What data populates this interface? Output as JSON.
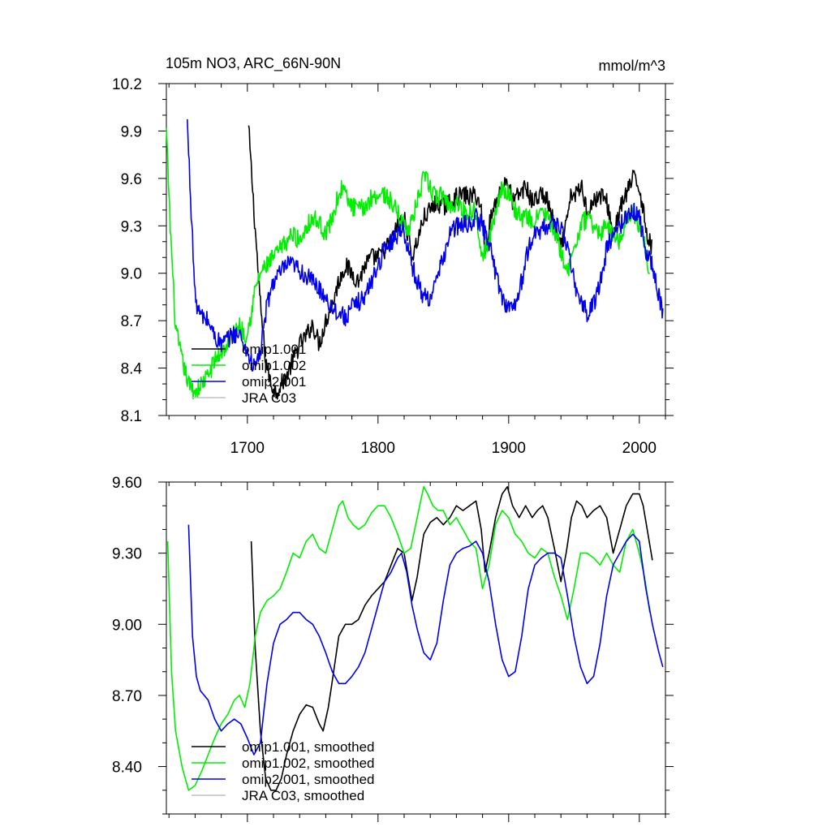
{
  "chart_data": [
    {
      "type": "line",
      "title": "105m NO3, ARC_66N-90N",
      "units": "mmol/m^3",
      "xlim": [
        1638,
        2020
      ],
      "ylim": [
        8.1,
        10.2
      ],
      "x_ticks": [
        1700,
        1800,
        1900,
        2000
      ],
      "x_tick_labels": [
        "1700",
        "1800",
        "1900",
        "2000"
      ],
      "y_ticks": [
        8.1,
        8.4,
        8.7,
        9.0,
        9.3,
        9.6,
        9.9,
        10.2
      ],
      "y_tick_labels": [
        "8.1",
        "8.4",
        "8.7",
        "9.0",
        "9.3",
        "9.6",
        "9.9",
        "10.2"
      ],
      "noise": 0.06,
      "legend": [
        "omip1.001",
        "omip1.002",
        "omip2.001",
        "JRA C03"
      ],
      "series": [
        {
          "name": "omip1.001",
          "color": "#000000",
          "x": [
            1701,
            1705,
            1710,
            1714,
            1718,
            1722,
            1726,
            1730,
            1735,
            1740,
            1745,
            1750,
            1755,
            1760,
            1765,
            1770,
            1775,
            1780,
            1785,
            1790,
            1795,
            1800,
            1805,
            1810,
            1815,
            1820,
            1823,
            1826,
            1830,
            1835,
            1840,
            1845,
            1850,
            1855,
            1860,
            1865,
            1870,
            1875,
            1879,
            1882,
            1885,
            1890,
            1895,
            1899,
            1903,
            1908,
            1913,
            1918,
            1922,
            1926,
            1930,
            1935,
            1940,
            1944,
            1948,
            1952,
            1956,
            1960,
            1965,
            1970,
            1975,
            1980,
            1985,
            1990,
            1995,
            2000,
            2003,
            2006,
            2010
          ],
          "y": [
            9.92,
            9.4,
            8.8,
            8.45,
            8.3,
            8.25,
            8.3,
            8.35,
            8.45,
            8.55,
            8.6,
            8.68,
            8.55,
            8.7,
            8.8,
            8.95,
            9.05,
            9.0,
            8.95,
            9.05,
            9.1,
            9.1,
            9.15,
            9.2,
            9.3,
            9.35,
            9.25,
            9.1,
            9.2,
            9.35,
            9.4,
            9.45,
            9.42,
            9.45,
            9.48,
            9.5,
            9.48,
            9.5,
            9.4,
            9.15,
            9.3,
            9.45,
            9.55,
            9.6,
            9.45,
            9.5,
            9.55,
            9.45,
            9.48,
            9.5,
            9.45,
            9.3,
            9.15,
            9.3,
            9.5,
            9.5,
            9.55,
            9.4,
            9.45,
            9.5,
            9.45,
            9.25,
            9.4,
            9.5,
            9.6,
            9.55,
            9.4,
            9.25,
            9.15
          ]
        },
        {
          "name": "omip1.002",
          "color": "#00ee00",
          "x": [
            1638,
            1641,
            1645,
            1650,
            1655,
            1660,
            1665,
            1670,
            1675,
            1680,
            1685,
            1690,
            1694,
            1698,
            1702,
            1706,
            1710,
            1715,
            1720,
            1725,
            1730,
            1735,
            1740,
            1745,
            1750,
            1755,
            1760,
            1765,
            1770,
            1773,
            1777,
            1781,
            1785,
            1790,
            1795,
            1800,
            1805,
            1810,
            1815,
            1820,
            1825,
            1830,
            1835,
            1838,
            1842,
            1846,
            1850,
            1855,
            1860,
            1865,
            1870,
            1875,
            1880,
            1885,
            1890,
            1895,
            1900,
            1905,
            1910,
            1915,
            1920,
            1925,
            1930,
            1935,
            1940,
            1945,
            1950,
            1955,
            1960,
            1965,
            1970,
            1975,
            1980,
            1985,
            1990,
            1995,
            2000,
            2004,
            2008
          ],
          "y": [
            9.9,
            9.3,
            8.65,
            8.45,
            8.3,
            8.25,
            8.3,
            8.35,
            8.45,
            8.5,
            8.55,
            8.62,
            8.68,
            8.6,
            8.7,
            8.9,
            9.0,
            9.05,
            9.1,
            9.15,
            9.2,
            9.25,
            9.2,
            9.3,
            9.35,
            9.32,
            9.25,
            9.35,
            9.5,
            9.55,
            9.45,
            9.42,
            9.4,
            9.42,
            9.48,
            9.5,
            9.5,
            9.45,
            9.38,
            9.3,
            9.3,
            9.45,
            9.6,
            9.58,
            9.5,
            9.48,
            9.5,
            9.42,
            9.45,
            9.4,
            9.38,
            9.4,
            9.1,
            9.2,
            9.4,
            9.55,
            9.5,
            9.4,
            9.35,
            9.35,
            9.32,
            9.4,
            9.35,
            9.25,
            9.15,
            9.0,
            9.15,
            9.3,
            9.35,
            9.3,
            9.25,
            9.3,
            9.25,
            9.2,
            9.35,
            9.4,
            9.3,
            9.2,
            9.0
          ]
        },
        {
          "name": "omip2.001",
          "color": "#0000ee",
          "x": [
            1654,
            1657,
            1660,
            1663,
            1666,
            1670,
            1675,
            1680,
            1685,
            1690,
            1695,
            1700,
            1705,
            1710,
            1715,
            1720,
            1725,
            1730,
            1735,
            1740,
            1745,
            1750,
            1755,
            1760,
            1765,
            1770,
            1775,
            1780,
            1785,
            1790,
            1795,
            1800,
            1805,
            1810,
            1815,
            1818,
            1822,
            1826,
            1830,
            1835,
            1840,
            1845,
            1850,
            1855,
            1860,
            1865,
            1870,
            1875,
            1880,
            1885,
            1890,
            1895,
            1900,
            1905,
            1910,
            1915,
            1920,
            1925,
            1930,
            1935,
            1940,
            1945,
            1950,
            1955,
            1960,
            1965,
            1970,
            1975,
            1980,
            1985,
            1990,
            1995,
            2000,
            2005,
            2010,
            2015,
            2018
          ],
          "y": [
            9.95,
            9.4,
            8.85,
            8.75,
            8.72,
            8.7,
            8.6,
            8.55,
            8.58,
            8.62,
            8.6,
            8.5,
            8.4,
            8.5,
            8.8,
            8.95,
            9.0,
            9.05,
            9.05,
            9.02,
            8.98,
            8.95,
            8.9,
            8.85,
            8.78,
            8.75,
            8.72,
            8.78,
            8.82,
            8.85,
            8.95,
            9.05,
            9.15,
            9.2,
            9.25,
            9.3,
            9.2,
            9.05,
            8.95,
            8.85,
            8.85,
            8.95,
            9.1,
            9.25,
            9.3,
            9.3,
            9.32,
            9.35,
            9.3,
            9.2,
            9.0,
            8.85,
            8.78,
            8.8,
            8.95,
            9.15,
            9.25,
            9.28,
            9.3,
            9.32,
            9.3,
            9.15,
            8.95,
            8.82,
            8.75,
            8.8,
            8.95,
            9.15,
            9.25,
            9.3,
            9.35,
            9.4,
            9.35,
            9.15,
            9.05,
            8.85,
            8.75
          ]
        },
        {
          "name": "JRA C03",
          "color": "#c0c0c0",
          "x": [],
          "y": []
        }
      ]
    },
    {
      "type": "line",
      "title": "",
      "xlim": [
        1638,
        2020
      ],
      "ylim": [
        8.2,
        9.6
      ],
      "x_ticks": [
        1700,
        1800,
        1900,
        2000
      ],
      "x_tick_labels": [],
      "y_ticks": [
        8.4,
        8.7,
        9.0,
        9.3,
        9.6
      ],
      "y_tick_labels": [
        "8.40",
        "8.70",
        "9.00",
        "9.30",
        "9.60"
      ],
      "noise": 0.0,
      "legend": [
        "omip1.001, smoothed",
        "omip1.002, smoothed",
        "omip2.001, smoothed",
        "JRA C03, smoothed"
      ],
      "series": [
        {
          "name": "omip1.001, smoothed",
          "color": "#000000",
          "x": [
            1703,
            1706,
            1710,
            1714,
            1718,
            1722,
            1726,
            1730,
            1735,
            1740,
            1745,
            1750,
            1755,
            1758,
            1762,
            1766,
            1770,
            1775,
            1780,
            1785,
            1790,
            1795,
            1800,
            1805,
            1810,
            1815,
            1820,
            1823,
            1826,
            1830,
            1835,
            1840,
            1845,
            1850,
            1855,
            1860,
            1865,
            1870,
            1875,
            1879,
            1882,
            1885,
            1890,
            1895,
            1899,
            1903,
            1908,
            1913,
            1918,
            1922,
            1926,
            1930,
            1935,
            1940,
            1944,
            1948,
            1952,
            1956,
            1960,
            1965,
            1970,
            1975,
            1980,
            1985,
            1990,
            1995,
            2000,
            2003,
            2006,
            2010
          ],
          "y": [
            9.35,
            8.9,
            8.55,
            8.35,
            8.3,
            8.3,
            8.35,
            8.45,
            8.55,
            8.62,
            8.66,
            8.65,
            8.58,
            8.55,
            8.65,
            8.8,
            8.95,
            9.0,
            9.0,
            9.02,
            9.08,
            9.12,
            9.15,
            9.18,
            9.25,
            9.32,
            9.3,
            9.2,
            9.1,
            9.2,
            9.38,
            9.43,
            9.45,
            9.42,
            9.45,
            9.5,
            9.48,
            9.5,
            9.52,
            9.4,
            9.22,
            9.3,
            9.45,
            9.55,
            9.58,
            9.5,
            9.45,
            9.5,
            9.45,
            9.48,
            9.5,
            9.45,
            9.32,
            9.18,
            9.3,
            9.45,
            9.52,
            9.5,
            9.45,
            9.48,
            9.5,
            9.45,
            9.3,
            9.4,
            9.5,
            9.55,
            9.55,
            9.5,
            9.4,
            9.27
          ]
        },
        {
          "name": "omip1.002, smoothed",
          "color": "#00ee00",
          "x": [
            1639,
            1642,
            1645,
            1650,
            1655,
            1660,
            1665,
            1670,
            1675,
            1680,
            1685,
            1690,
            1694,
            1698,
            1702,
            1706,
            1710,
            1715,
            1720,
            1725,
            1730,
            1735,
            1740,
            1745,
            1750,
            1755,
            1760,
            1765,
            1770,
            1773,
            1777,
            1781,
            1785,
            1790,
            1795,
            1800,
            1805,
            1810,
            1815,
            1820,
            1825,
            1830,
            1835,
            1838,
            1842,
            1846,
            1850,
            1855,
            1860,
            1865,
            1870,
            1875,
            1880,
            1885,
            1890,
            1895,
            1900,
            1905,
            1910,
            1915,
            1920,
            1925,
            1930,
            1935,
            1940,
            1945,
            1950,
            1955,
            1960,
            1965,
            1970,
            1975,
            1980,
            1985,
            1990,
            1995,
            2000,
            2004,
            2008
          ],
          "y": [
            9.35,
            8.8,
            8.55,
            8.4,
            8.3,
            8.32,
            8.38,
            8.45,
            8.52,
            8.58,
            8.62,
            8.68,
            8.7,
            8.65,
            8.75,
            8.95,
            9.05,
            9.1,
            9.12,
            9.15,
            9.22,
            9.3,
            9.28,
            9.35,
            9.38,
            9.32,
            9.3,
            9.4,
            9.5,
            9.52,
            9.45,
            9.42,
            9.4,
            9.42,
            9.47,
            9.5,
            9.5,
            9.45,
            9.38,
            9.3,
            9.32,
            9.45,
            9.58,
            9.55,
            9.5,
            9.48,
            9.48,
            9.42,
            9.45,
            9.4,
            9.35,
            9.32,
            9.15,
            9.25,
            9.42,
            9.48,
            9.45,
            9.38,
            9.35,
            9.3,
            9.28,
            9.32,
            9.3,
            9.2,
            9.12,
            9.02,
            9.15,
            9.3,
            9.3,
            9.28,
            9.25,
            9.3,
            9.25,
            9.22,
            9.35,
            9.4,
            9.3,
            9.2,
            9.05
          ]
        },
        {
          "name": "omip2.001, smoothed",
          "color": "#0000ee",
          "x": [
            1655,
            1658,
            1661,
            1664,
            1667,
            1670,
            1675,
            1680,
            1685,
            1690,
            1695,
            1700,
            1705,
            1710,
            1715,
            1720,
            1725,
            1730,
            1735,
            1740,
            1745,
            1750,
            1755,
            1760,
            1765,
            1770,
            1775,
            1780,
            1785,
            1790,
            1795,
            1800,
            1805,
            1810,
            1815,
            1818,
            1822,
            1826,
            1830,
            1835,
            1840,
            1845,
            1850,
            1855,
            1860,
            1865,
            1870,
            1875,
            1880,
            1885,
            1890,
            1895,
            1900,
            1905,
            1910,
            1915,
            1920,
            1925,
            1930,
            1935,
            1940,
            1945,
            1950,
            1955,
            1960,
            1965,
            1970,
            1975,
            1980,
            1985,
            1990,
            1995,
            2000,
            2005,
            2010,
            2015,
            2018
          ],
          "y": [
            9.42,
            8.95,
            8.78,
            8.72,
            8.7,
            8.68,
            8.6,
            8.55,
            8.58,
            8.6,
            8.58,
            8.52,
            8.45,
            8.5,
            8.75,
            8.92,
            9.0,
            9.02,
            9.05,
            9.05,
            9.02,
            9.0,
            8.95,
            8.88,
            8.8,
            8.75,
            8.75,
            8.78,
            8.82,
            8.88,
            8.98,
            9.08,
            9.18,
            9.22,
            9.28,
            9.3,
            9.22,
            9.08,
            8.98,
            8.88,
            8.85,
            8.92,
            9.1,
            9.25,
            9.3,
            9.32,
            9.33,
            9.35,
            9.3,
            9.18,
            9.0,
            8.85,
            8.78,
            8.8,
            8.95,
            9.15,
            9.25,
            9.28,
            9.3,
            9.3,
            9.28,
            9.12,
            8.95,
            8.82,
            8.75,
            8.78,
            8.92,
            9.12,
            9.25,
            9.3,
            9.35,
            9.38,
            9.35,
            9.15,
            9.0,
            8.88,
            8.82
          ]
        },
        {
          "name": "JRA C03, smoothed",
          "color": "#c0c0c0",
          "x": [],
          "y": []
        }
      ]
    }
  ]
}
